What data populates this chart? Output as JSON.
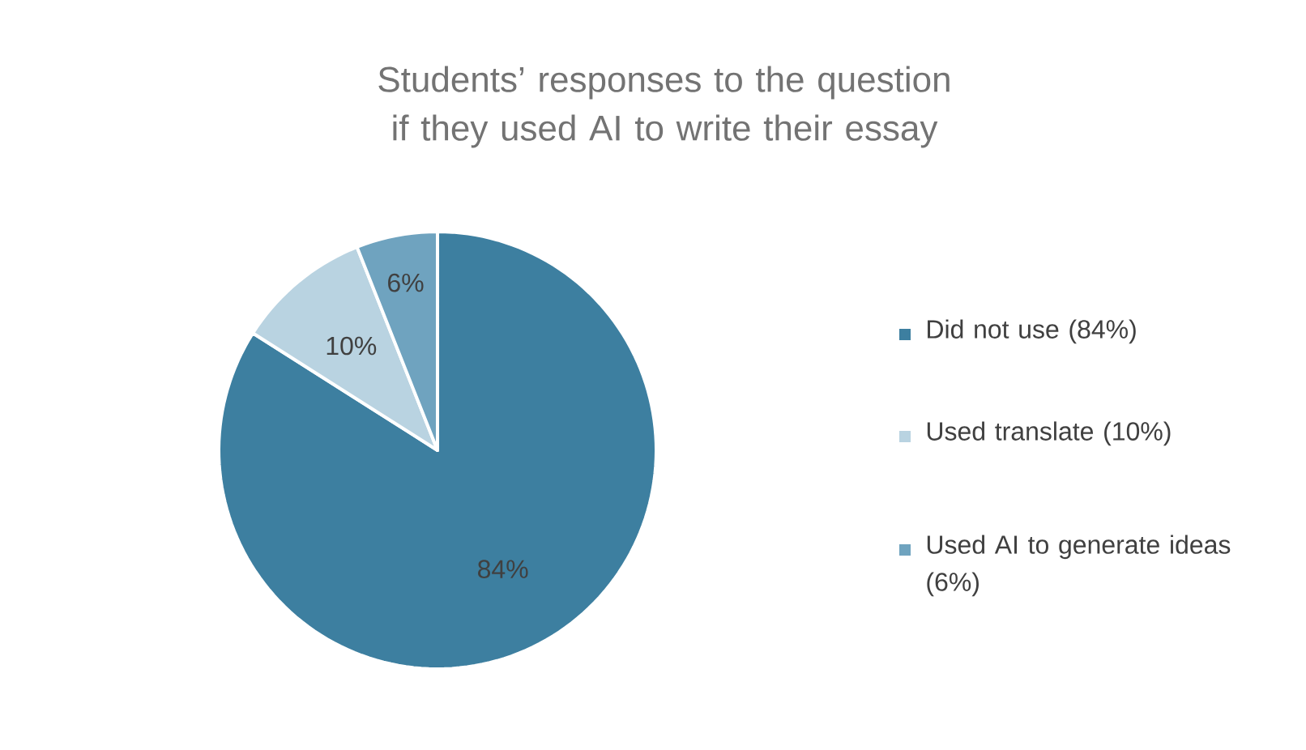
{
  "chart_data": {
    "type": "pie",
    "title": "Students’ responses to the question if they used AI to write their essay",
    "categories": [
      "Did not use (84%)",
      "Used translate (10%)",
      "Used AI to generate ideas (6%)"
    ],
    "values": [
      84,
      10,
      6
    ],
    "colors": [
      "#3d7fa0",
      "#b9d3e1",
      "#6fa3bf"
    ],
    "value_labels": [
      "84%",
      "10%",
      "6%"
    ],
    "legend": "right"
  }
}
